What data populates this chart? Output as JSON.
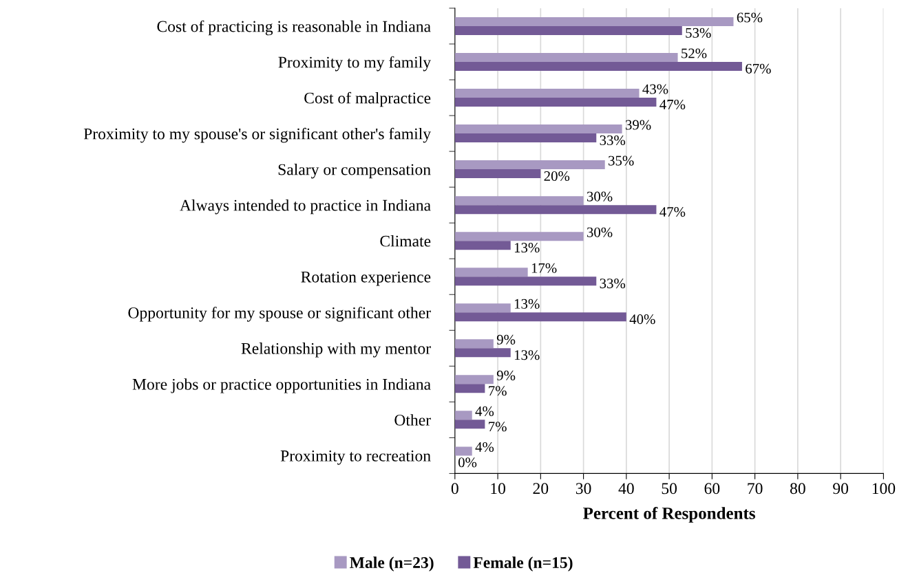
{
  "chart_data": {
    "type": "bar",
    "orientation": "horizontal",
    "categories": [
      "Cost of practicing is reasonable in Indiana",
      "Proximity to my family",
      "Cost of malpractice",
      "Proximity to my spouse's or significant other's family",
      "Salary or compensation",
      "Always intended to practice in Indiana",
      "Climate",
      "Rotation experience",
      "Opportunity for my spouse or significant other",
      "Relationship with my mentor",
      "More jobs or practice opportunities in Indiana",
      "Other",
      "Proximity to recreation"
    ],
    "series": [
      {
        "name": "Male (n=23)",
        "color": "#a899c2",
        "values": [
          65,
          52,
          43,
          39,
          35,
          30,
          30,
          17,
          13,
          9,
          9,
          4,
          4
        ],
        "value_labels": [
          "65%",
          "52%",
          "43%",
          "39%",
          "35%",
          "30%",
          "30%",
          "17%",
          "13%",
          "9%",
          "9%",
          "4%",
          "4%"
        ]
      },
      {
        "name": "Female (n=15)",
        "color": "#735a96",
        "values": [
          53,
          67,
          47,
          33,
          20,
          47,
          13,
          33,
          40,
          13,
          7,
          7,
          0
        ],
        "value_labels": [
          "53%",
          "67%",
          "47%",
          "33%",
          "20%",
          "47%",
          "13%",
          "33%",
          "40%",
          "13%",
          "7%",
          "7%",
          "0%"
        ]
      }
    ],
    "xlabel": "Percent of Respondents",
    "xlim": [
      0,
      100
    ],
    "xticks": [
      0,
      10,
      20,
      30,
      40,
      50,
      60,
      70,
      80,
      90,
      100
    ],
    "grid": "x",
    "legend": "bottom"
  }
}
